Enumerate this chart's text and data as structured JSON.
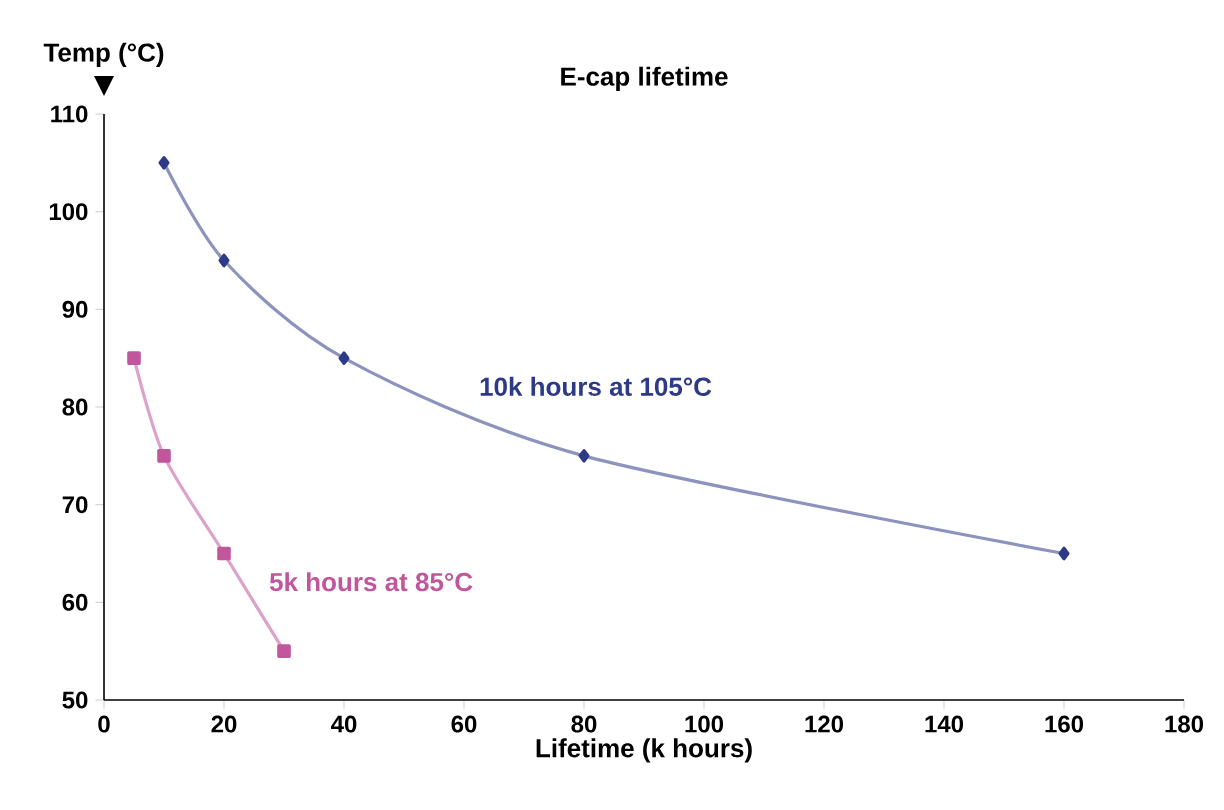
{
  "chart_data": {
    "type": "line",
    "title": "E-cap lifetime",
    "xlabel": "Lifetime (k hours)",
    "ylabel": "Temp (°C)",
    "xlim": [
      0,
      180
    ],
    "xticks": [
      0,
      20,
      40,
      60,
      80,
      100,
      120,
      140,
      160,
      180
    ],
    "ylim": [
      50,
      110
    ],
    "yticks": [
      50,
      60,
      70,
      80,
      90,
      100,
      110
    ],
    "series": [
      {
        "name": "10k hours at 105°C",
        "color": "#2e3a87",
        "marker": "diamond",
        "x": [
          10,
          20,
          40,
          80,
          160
        ],
        "values": [
          105,
          95,
          85,
          75,
          65
        ]
      },
      {
        "name": "5k hours at 85°C",
        "color": "#c0569c",
        "marker": "square",
        "x": [
          5,
          10,
          20,
          30
        ],
        "values": [
          85,
          75,
          65,
          55
        ]
      }
    ]
  }
}
